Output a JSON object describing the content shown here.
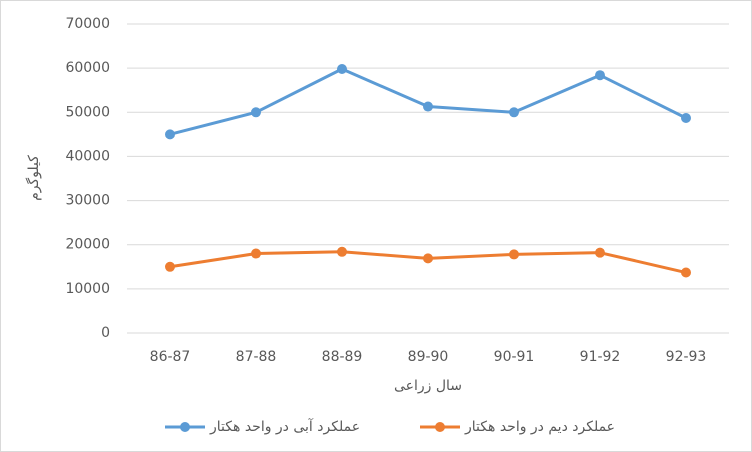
{
  "chart_data": {
    "type": "line",
    "x_label": "سال زراعی",
    "y_label": "کیلوگرم",
    "categories": [
      "86-87",
      "87-88",
      "88-89",
      "89-90",
      "90-91",
      "91-92",
      "92-93"
    ],
    "series": [
      {
        "name": "عملکرد آبی در واحد هکتار",
        "color": "#5b9bd5",
        "values": [
          45000,
          50000,
          59800,
          51300,
          50000,
          58400,
          48700
        ]
      },
      {
        "name": "عملکرد دیم در واحد هکتار",
        "color": "#ed7d31",
        "values": [
          15000,
          18000,
          18400,
          16900,
          17800,
          18200,
          13700
        ]
      }
    ],
    "ylim": [
      0,
      70000
    ],
    "yticks": [
      0,
      10000,
      20000,
      30000,
      40000,
      50000,
      60000,
      70000
    ],
    "grid": true
  }
}
